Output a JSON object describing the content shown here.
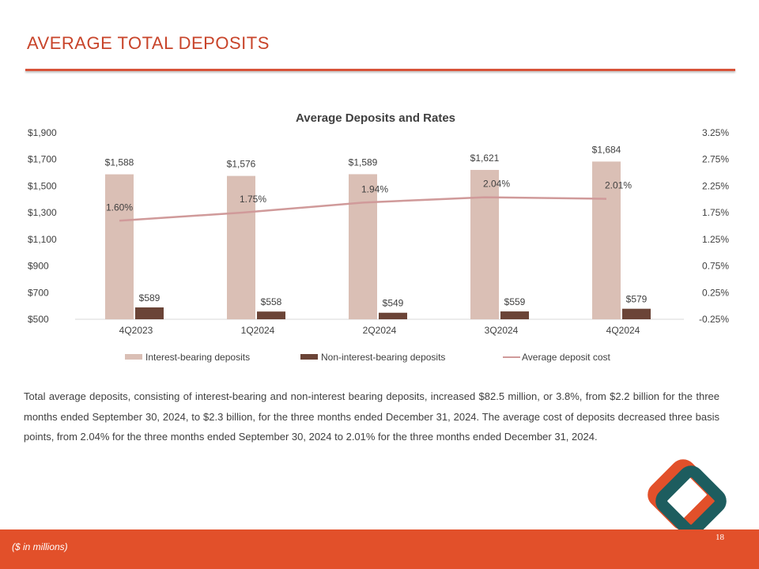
{
  "slide": {
    "title": "AVERAGE TOTAL DEPOSITS",
    "body": "Total average deposits, consisting of interest-bearing and non-interest bearing deposits, increased $82.5 million, or 3.8%, from $2.2 billion for the three months ended September 30, 2024, to $2.3 billion, for the three months ended December 31, 2024. The average cost of deposits decreased three basis points, from 2.04% for the three months ended September 30, 2024 to 2.01% for the three months ended December 31, 2024.",
    "footnote": "($ in millions)",
    "page_number": "18"
  },
  "colors": {
    "accent": "#e2502a",
    "title": "#c8442a",
    "interest_bar": "#dabfb5",
    "noninterest_bar": "#6b4437",
    "cost_line": "#d09a9a",
    "logo_orange": "#e2502a",
    "logo_teal": "#1d5d5f"
  },
  "logo": {
    "icon": "diamond-logo-icon"
  },
  "chart_data": {
    "type": "bar",
    "title": "Average Deposits and Rates",
    "categories": [
      "4Q2023",
      "1Q2024",
      "2Q2024",
      "3Q2024",
      "4Q2024"
    ],
    "series": [
      {
        "name": "Interest-bearing deposits",
        "axis": "left",
        "type": "bar",
        "values": [
          1588,
          1576,
          1589,
          1621,
          1684
        ],
        "labels": [
          "$1,588",
          "$1,576",
          "$1,589",
          "$1,621",
          "$1,684"
        ]
      },
      {
        "name": "Non-interest-bearing deposits",
        "axis": "left",
        "type": "bar",
        "values": [
          589,
          558,
          549,
          559,
          579
        ],
        "labels": [
          "$589",
          "$558",
          "$549",
          "$559",
          "$579"
        ]
      },
      {
        "name": "Average deposit cost",
        "axis": "right",
        "type": "line",
        "values": [
          1.6,
          1.75,
          1.94,
          2.04,
          2.01
        ],
        "labels": [
          "1.60%",
          "1.75%",
          "1.94%",
          "2.04%",
          "2.01%"
        ]
      }
    ],
    "y_left": {
      "min": 500,
      "max": 1900,
      "ticks": [
        500,
        700,
        900,
        1100,
        1300,
        1500,
        1700,
        1900
      ],
      "tick_labels": [
        "$500",
        "$700",
        "$900",
        "$1,100",
        "$1,300",
        "$1,500",
        "$1,700",
        "$1,900"
      ]
    },
    "y_right": {
      "min": -0.25,
      "max": 3.25,
      "ticks": [
        -0.25,
        0.25,
        0.75,
        1.25,
        1.75,
        2.25,
        2.75,
        3.25
      ],
      "tick_labels": [
        "-0.25%",
        "0.25%",
        "0.75%",
        "1.25%",
        "1.75%",
        "2.25%",
        "2.75%",
        "3.25%"
      ]
    },
    "grid": false,
    "legend": "bottom"
  }
}
